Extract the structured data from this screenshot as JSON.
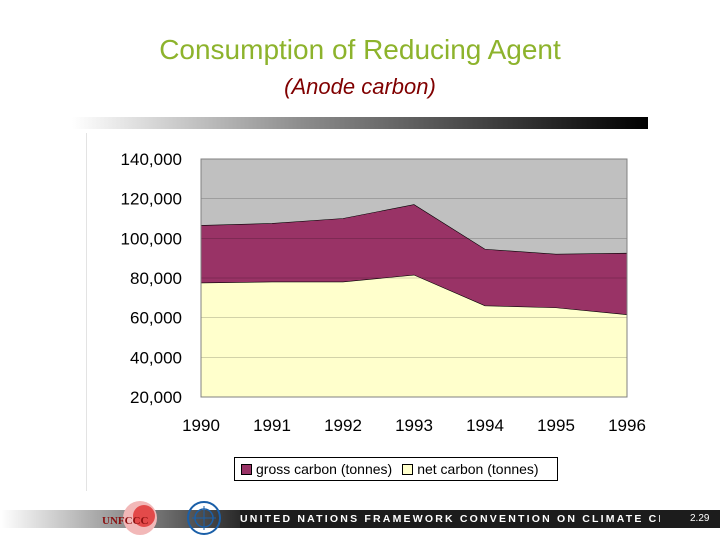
{
  "page": {
    "title": "Consumption of Reducing Agent",
    "subtitle": "(Anode carbon)"
  },
  "colors": {
    "title": "#8db32c",
    "subtitle": "#800000",
    "plot_background": "#c0c0c0",
    "gross_fill": "#993366",
    "net_fill": "#ffffcc"
  },
  "chart_data": {
    "type": "area",
    "title": "",
    "xlabel": "",
    "ylabel": "",
    "categories": [
      "1990",
      "1991",
      "1992",
      "1993",
      "1994",
      "1995",
      "1996"
    ],
    "series": [
      {
        "name": "gross carbon (tonnes)",
        "values": [
          106500,
          107500,
          110000,
          117000,
          94500,
          92000,
          92500
        ]
      },
      {
        "name": "net carbon (tonnes)",
        "values": [
          77500,
          78000,
          78000,
          81500,
          66000,
          65000,
          61500
        ]
      }
    ],
    "ylim": [
      20000,
      140000
    ],
    "yticks": [
      20000,
      40000,
      60000,
      80000,
      100000,
      120000,
      140000
    ],
    "ytick_labels": [
      "20,000",
      "40,000",
      "60,000",
      "80,000",
      "100,000",
      "120,000",
      "140,000"
    ],
    "grid": true,
    "legend_position": "bottom"
  },
  "footer": {
    "banner_text": "UNITED NATIONS FRAMEWORK CONVENTION ON CLIMATE CHANGE",
    "page_number": "2.29",
    "logo_text": "UNFCCC",
    "un_logo": "un-emblem-icon"
  }
}
